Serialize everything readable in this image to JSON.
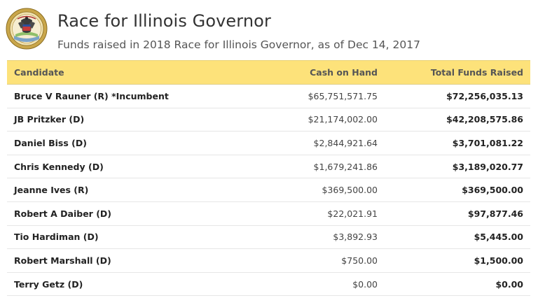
{
  "header": {
    "title": "Race for Illinois Governor",
    "subtitle": "Funds raised in 2018 Race for Illinois Governor, as of Dec 14, 2017",
    "seal_icon": "illinois-state-seal-icon"
  },
  "colors": {
    "header_row_bg": "#fde27a",
    "seal_gold": "#c9a64a"
  },
  "table": {
    "columns": [
      "Candidate",
      "Cash on Hand",
      "Total Funds Raised"
    ],
    "rows": [
      {
        "candidate": "Bruce V Rauner (R) *Incumbent",
        "cash": "$65,751,571.75",
        "total": "$72,256,035.13"
      },
      {
        "candidate": "JB Pritzker (D)",
        "cash": "$21,174,002.00",
        "total": "$42,208,575.86"
      },
      {
        "candidate": "Daniel Biss (D)",
        "cash": "$2,844,921.64",
        "total": "$3,701,081.22"
      },
      {
        "candidate": "Chris Kennedy (D)",
        "cash": "$1,679,241.86",
        "total": "$3,189,020.77"
      },
      {
        "candidate": "Jeanne Ives (R)",
        "cash": "$369,500.00",
        "total": "$369,500.00"
      },
      {
        "candidate": "Robert A Daiber (D)",
        "cash": "$22,021.91",
        "total": "$97,877.46"
      },
      {
        "candidate": "Tio Hardiman (D)",
        "cash": "$3,892.93",
        "total": "$5,445.00"
      },
      {
        "candidate": "Robert Marshall (D)",
        "cash": "$750.00",
        "total": "$1,500.00"
      },
      {
        "candidate": "Terry Getz (D)",
        "cash": "$0.00",
        "total": "$0.00"
      }
    ]
  }
}
